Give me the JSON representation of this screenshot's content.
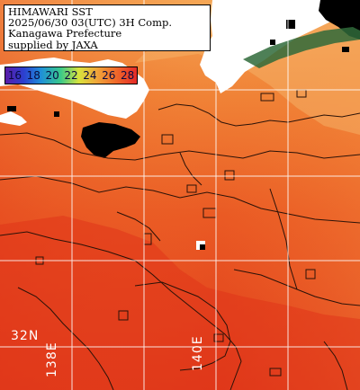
{
  "title_lines": [
    "HIMAWARI SST",
    "2025/06/30 03(UTC) 3H Comp.",
    "Kanagawa Prefecture",
    "supplied by JAXA"
  ],
  "legend": {
    "labels": [
      "16",
      "18",
      "20",
      "22",
      "24",
      "26",
      "28"
    ]
  },
  "grid_labels": {
    "latitude": "32N",
    "longitude_1": "138E",
    "longitude_2": "140E"
  },
  "colors": {
    "land": "#ffffff",
    "missing_data": "#000000",
    "sea_warm": "#e8421e",
    "sea_mid": "#ef6a28",
    "sea_cool": "#f39a48",
    "graticule": "#ffffff",
    "contour": "#2a1208"
  }
}
